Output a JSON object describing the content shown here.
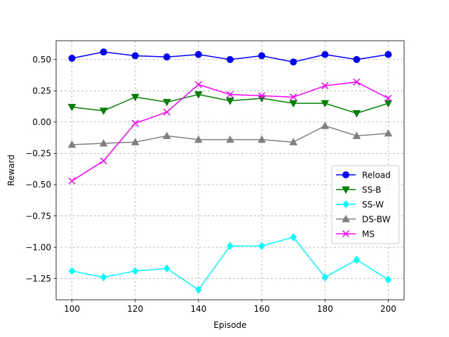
{
  "chart_data": {
    "type": "line",
    "title": "",
    "xlabel": "Episode",
    "ylabel": "Reward",
    "xlim": [
      95,
      205
    ],
    "ylim": [
      -1.42,
      0.65
    ],
    "xticks": [
      100,
      120,
      140,
      160,
      180,
      200
    ],
    "xtick_labels": [
      "100",
      "120",
      "140",
      "160",
      "180",
      "200"
    ],
    "yticks": [
      0.5,
      0.25,
      0.0,
      -0.25,
      -0.5,
      -0.75,
      -1.0,
      -1.25
    ],
    "ytick_labels": [
      "0.50",
      "0.25",
      "0.00",
      "−0.25",
      "−0.50",
      "−0.75",
      "−1.00",
      "−1.25"
    ],
    "grid": true,
    "grid_style": "dashed",
    "legend_position": "center-right",
    "x": [
      100,
      110,
      120,
      130,
      140,
      150,
      160,
      170,
      180,
      190,
      200
    ],
    "series": [
      {
        "name": "Reload",
        "color": "#0000ff",
        "marker": "circle",
        "values": [
          0.51,
          0.56,
          0.53,
          0.52,
          0.54,
          0.5,
          0.53,
          0.48,
          0.54,
          0.5,
          0.54
        ]
      },
      {
        "name": "SS-B",
        "color": "#008000",
        "marker": "triangle-down",
        "values": [
          0.12,
          0.09,
          0.2,
          0.16,
          0.22,
          0.17,
          0.19,
          0.15,
          0.15,
          0.07,
          0.15
        ]
      },
      {
        "name": "SS-W",
        "color": "#00ffff",
        "marker": "diamond",
        "values": [
          -1.19,
          -1.24,
          -1.19,
          -1.17,
          -1.34,
          -0.99,
          -0.99,
          -0.92,
          -1.24,
          -1.1,
          -1.26
        ]
      },
      {
        "name": "DS-BW",
        "color": "#808080",
        "marker": "triangle-up",
        "values": [
          -0.18,
          -0.17,
          -0.16,
          -0.11,
          -0.14,
          -0.14,
          -0.14,
          -0.16,
          -0.03,
          -0.11,
          -0.09
        ]
      },
      {
        "name": "MS",
        "color": "#ff00ff",
        "marker": "x",
        "values": [
          -0.47,
          -0.31,
          -0.01,
          0.08,
          0.3,
          0.22,
          0.21,
          0.2,
          0.29,
          0.32,
          0.19
        ]
      }
    ]
  }
}
